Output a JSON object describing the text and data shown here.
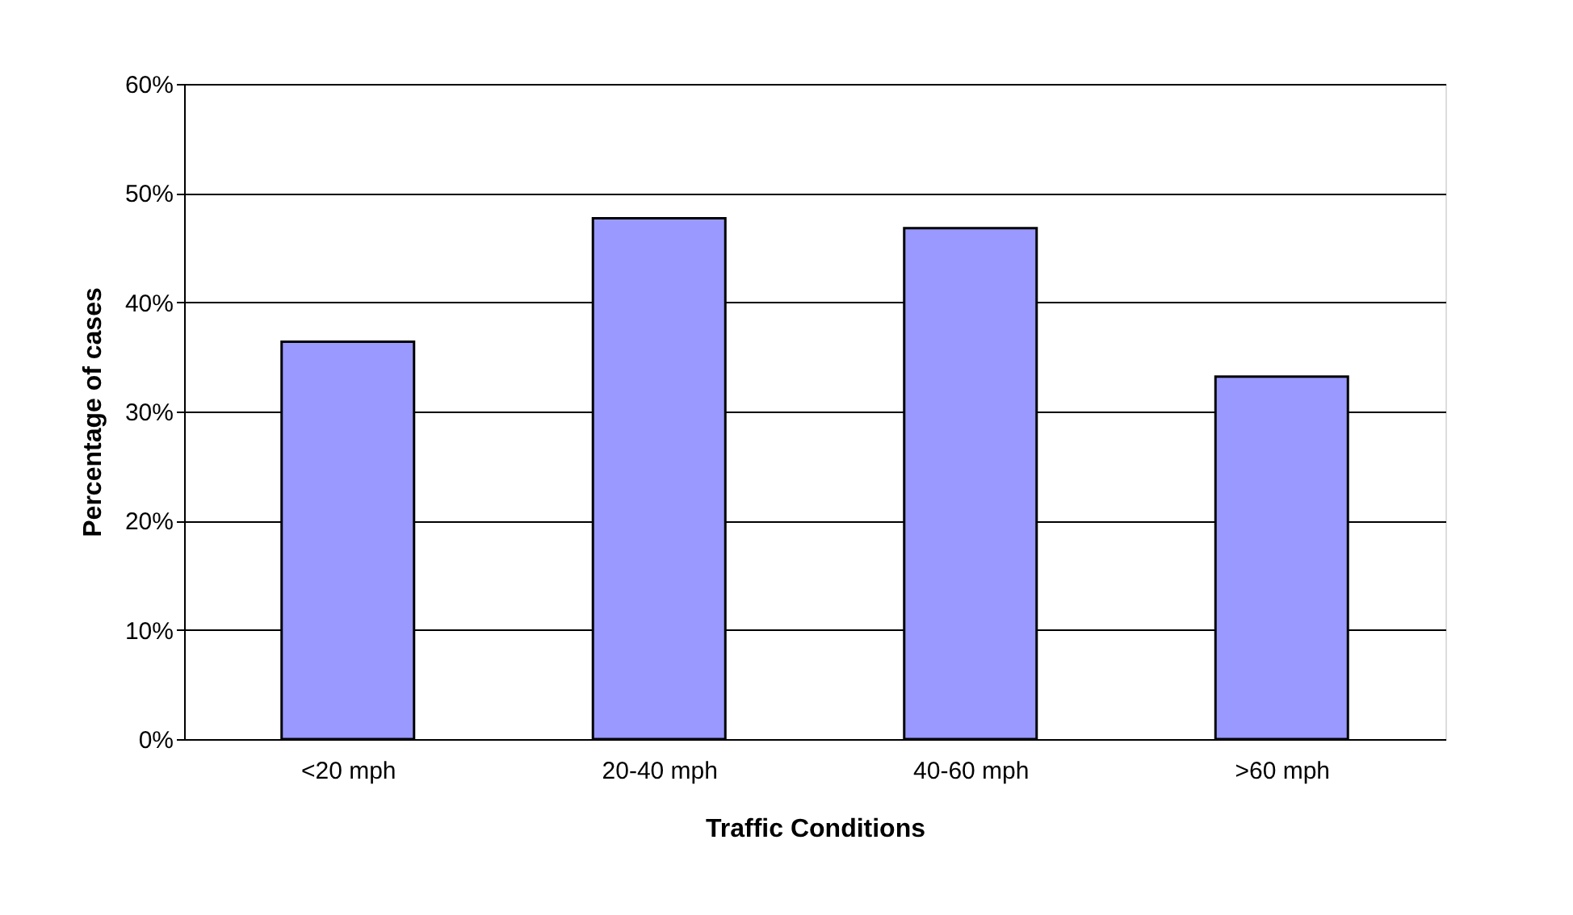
{
  "chart_data": {
    "type": "bar",
    "xlabel": "Traffic Conditions",
    "ylabel": "Percentage of cases",
    "categories": [
      "<20 mph",
      "20-40 mph",
      "40-60 mph",
      ">60 mph"
    ],
    "values": [
      36.4,
      47.7,
      46.8,
      33.2
    ],
    "color": "#9999ff",
    "ylim": [
      0,
      60
    ],
    "yticks": [
      {
        "value": 0,
        "label": "0%"
      },
      {
        "value": 10,
        "label": "10%"
      },
      {
        "value": 20,
        "label": "20%"
      },
      {
        "value": 30,
        "label": "30%"
      },
      {
        "value": 40,
        "label": "40%"
      },
      {
        "value": 50,
        "label": "50%"
      },
      {
        "value": 60,
        "label": "60%"
      }
    ],
    "grid": "y"
  }
}
